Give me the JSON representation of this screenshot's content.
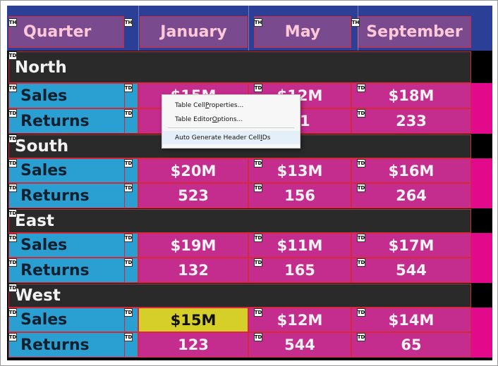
{
  "colors": {
    "header_bg": "#2a3f95",
    "header_cell": "#7a4a8e",
    "region_bg": "#2a2a2a",
    "label_bg": "#2aa0d2",
    "value_bg": "#c42c8e",
    "right_strip": "#e20a8a",
    "highlight": "#d6cf2a",
    "border": "#d6283a"
  },
  "table": {
    "headers": [
      "Quarter",
      "January",
      "May",
      "September"
    ],
    "regions": [
      {
        "name": "North",
        "rows": [
          {
            "label": "Sales",
            "values": [
              "$15M",
              "$12M",
              "$18M"
            ]
          },
          {
            "label": "Returns",
            "values": [
              "",
              "11",
              "233"
            ]
          }
        ]
      },
      {
        "name": "South",
        "rows": [
          {
            "label": "Sales",
            "values": [
              "$20M",
              "$13M",
              "$16M"
            ]
          },
          {
            "label": "Returns",
            "values": [
              "523",
              "156",
              "264"
            ]
          }
        ]
      },
      {
        "name": "East",
        "rows": [
          {
            "label": "Sales",
            "values": [
              "$19M",
              "$11M",
              "$17M"
            ]
          },
          {
            "label": "Returns",
            "values": [
              "132",
              "165",
              "544"
            ]
          }
        ]
      },
      {
        "name": "West",
        "rows": [
          {
            "label": "Sales",
            "values": [
              "$15M",
              "$12M",
              "$14M"
            ]
          },
          {
            "label": "Returns",
            "values": [
              "123",
              "544",
              "65"
            ]
          }
        ]
      }
    ],
    "tag_th": "TH",
    "tag_td": "TD"
  },
  "context_menu": {
    "items": [
      {
        "before": "Table Cell ",
        "key": "P",
        "after": "roperties..."
      },
      {
        "before": "Table Editor ",
        "key": "O",
        "after": "ptions..."
      },
      {
        "before": "Auto Generate Header Cell ",
        "key": "I",
        "after": "Ds"
      }
    ]
  }
}
